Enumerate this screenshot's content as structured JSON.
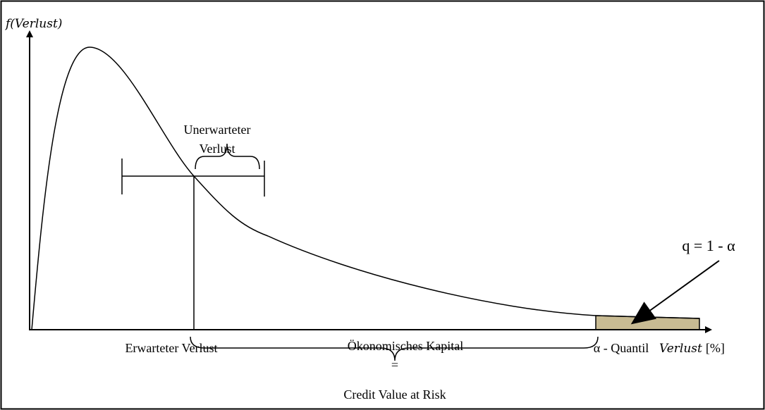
{
  "y_axis_label": "f(Verlust)",
  "x_axis_label": {
    "name": "Verlust",
    "unit": "[%]"
  },
  "unexpected_loss": [
    "Unerwarteter",
    "Verlust"
  ],
  "expected_loss": "Erwarteter Verlust",
  "economic_capital": "Ökonomisches Kapital",
  "equals": "=",
  "credit_var": "Credit Value at Risk",
  "quantile": "α - Quantil",
  "tail_probability": "q = 1 - α"
}
